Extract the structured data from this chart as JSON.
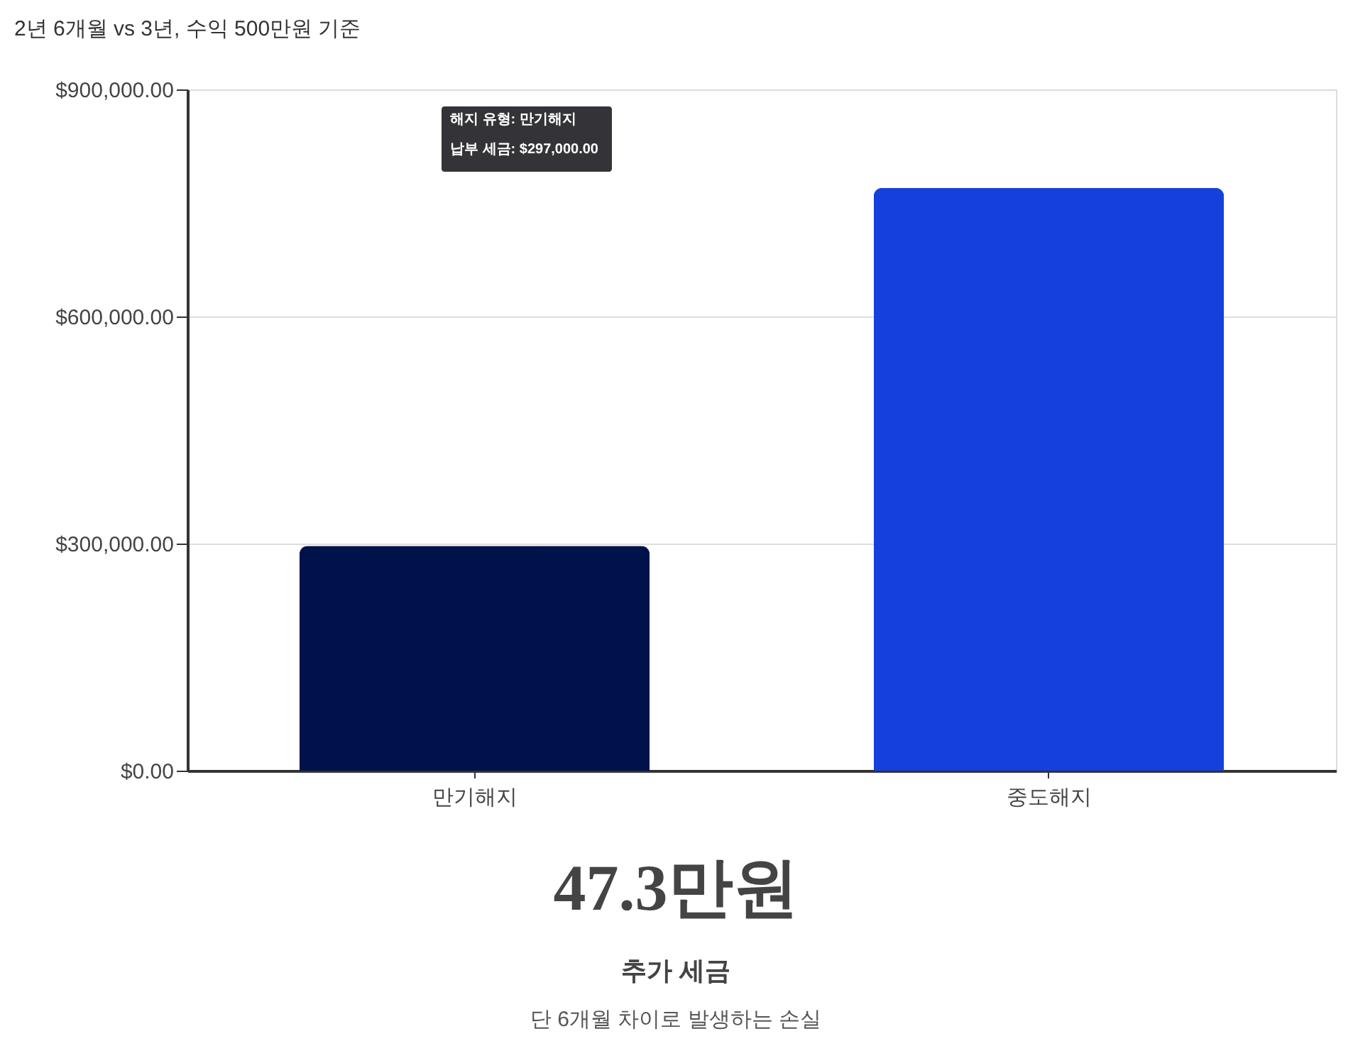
{
  "chart_data": {
    "type": "bar",
    "title": "2년 6개월 vs 3년, 수익 500만원 기준",
    "categories": [
      "만기해지",
      "중도해지"
    ],
    "values": [
      297000,
      770000
    ],
    "colors": [
      "#00124a",
      "#1540dc"
    ],
    "ylim": [
      0,
      900000
    ],
    "yticks": [
      {
        "value": 0,
        "label": "$0.00"
      },
      {
        "value": 300000,
        "label": "$300,000.00"
      },
      {
        "value": 600000,
        "label": "$600,000.00"
      },
      {
        "value": 900000,
        "label": "$900,000.00"
      }
    ],
    "grid": "y",
    "legend": false,
    "annotations": [
      "해지 유형: 만기해지",
      "납부 세금: $297,000.00",
      "47.3만원",
      "추가 세금",
      "단 6개월 차이로 발생하는 손실"
    ]
  }
}
